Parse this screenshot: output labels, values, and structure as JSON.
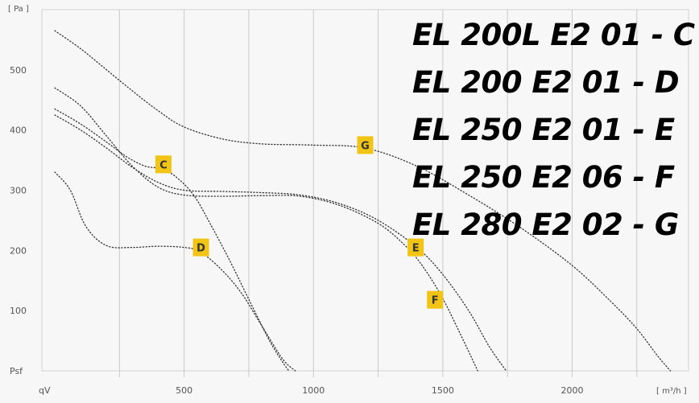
{
  "chart_data": {
    "type": "line",
    "xlabel": "qV",
    "ylabel": "Psf",
    "x_unit": "[ m³/h ]",
    "y_unit": "[ Pa ]",
    "xlim": [
      -50,
      2450
    ],
    "ylim": [
      0,
      600
    ],
    "xticks": [
      500,
      1000,
      1500,
      2000
    ],
    "yticks": [
      100,
      200,
      300,
      400,
      500
    ],
    "grid": "vertical",
    "series": [
      {
        "name": "C",
        "x": [
          0,
          100,
          200,
          280,
          350,
          420,
          480,
          540,
          600,
          680,
          760,
          830,
          880,
          905
        ],
        "y": [
          435,
          410,
          380,
          355,
          340,
          335,
          318,
          290,
          245,
          180,
          110,
          50,
          15,
          0
        ]
      },
      {
        "name": "D",
        "x": [
          0,
          60,
          120,
          200,
          300,
          400,
          500,
          560,
          640,
          720,
          800,
          880,
          930
        ],
        "y": [
          330,
          300,
          240,
          208,
          205,
          207,
          205,
          198,
          170,
          130,
          75,
          20,
          0
        ]
      },
      {
        "name": "E",
        "x": [
          0,
          100,
          200,
          300,
          400,
          500,
          650,
          800,
          950,
          1100,
          1250,
          1350,
          1420,
          1500,
          1580,
          1635
        ],
        "y": [
          470,
          440,
          390,
          340,
          305,
          292,
          290,
          291,
          290,
          275,
          245,
          210,
          175,
          120,
          50,
          0
        ]
      },
      {
        "name": "F",
        "x": [
          0,
          100,
          200,
          300,
          400,
          500,
          650,
          800,
          950,
          1100,
          1250,
          1400,
          1500,
          1600,
          1680,
          1745
        ],
        "y": [
          425,
          400,
          370,
          338,
          313,
          300,
          298,
          296,
          292,
          278,
          250,
          205,
          160,
          100,
          40,
          0
        ]
      },
      {
        "name": "G",
        "x": [
          0,
          100,
          200,
          300,
          400,
          500,
          650,
          800,
          1000,
          1200,
          1400,
          1600,
          1800,
          2000,
          2150,
          2250,
          2330,
          2380
        ],
        "y": [
          565,
          535,
          500,
          465,
          432,
          405,
          385,
          377,
          375,
          370,
          340,
          292,
          238,
          175,
          115,
          70,
          25,
          0
        ]
      }
    ],
    "markers": [
      {
        "label": "C",
        "x": 420,
        "y": 343
      },
      {
        "label": "D",
        "x": 565,
        "y": 205
      },
      {
        "label": "E",
        "x": 1395,
        "y": 205
      },
      {
        "label": "F",
        "x": 1470,
        "y": 118
      },
      {
        "label": "G",
        "x": 1200,
        "y": 375
      }
    ]
  },
  "legend_lines": [
    "EL 200L E2 01 - C",
    "EL 200 E2 01 - D",
    "EL 250 E2 01 - E",
    "EL 250 E2 06 - F",
    "EL 280 E2 02 - G"
  ]
}
